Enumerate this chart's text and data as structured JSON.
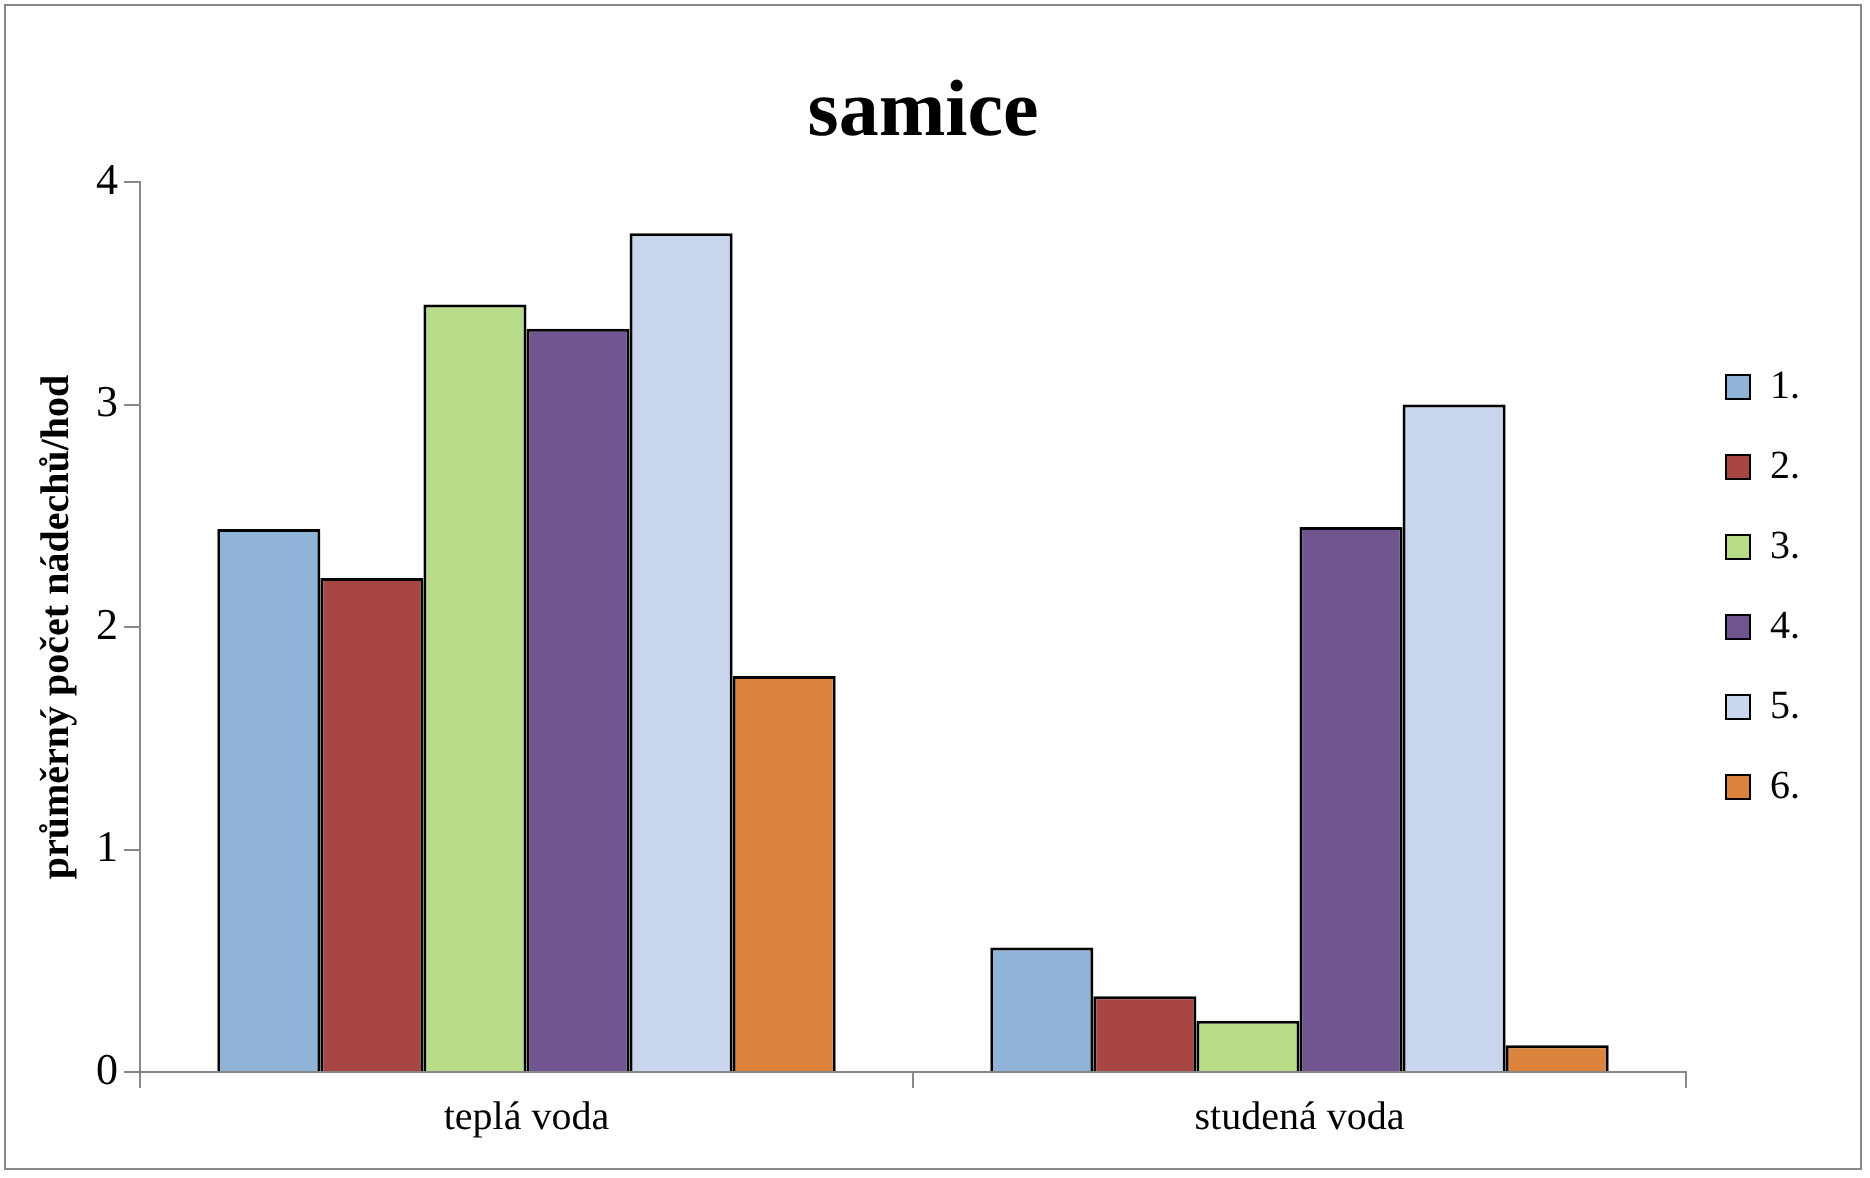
{
  "chart_data": {
    "type": "bar",
    "title": "samice",
    "ylabel": "průměrný počet nádechů/hod",
    "categories": [
      "teplá voda",
      "studená voda"
    ],
    "series": [
      {
        "name": "1.",
        "color": "#8fb4d8",
        "values": [
          2.44,
          0.56
        ]
      },
      {
        "name": "2.",
        "color": "#a84643",
        "values": [
          2.22,
          0.34
        ]
      },
      {
        "name": "3.",
        "color": "#b8dc8a",
        "values": [
          3.45,
          0.23
        ]
      },
      {
        "name": "4.",
        "color": "#705590",
        "values": [
          3.34,
          2.45
        ]
      },
      {
        "name": "5.",
        "color": "#c9d6ee",
        "values": [
          3.77,
          3.0
        ]
      },
      {
        "name": "6.",
        "color": "#dc843e",
        "values": [
          1.78,
          0.12
        ]
      }
    ],
    "ylim": [
      0,
      4
    ],
    "yticks": [
      0,
      1,
      2,
      3,
      4
    ],
    "grid": false,
    "legend": "right"
  }
}
